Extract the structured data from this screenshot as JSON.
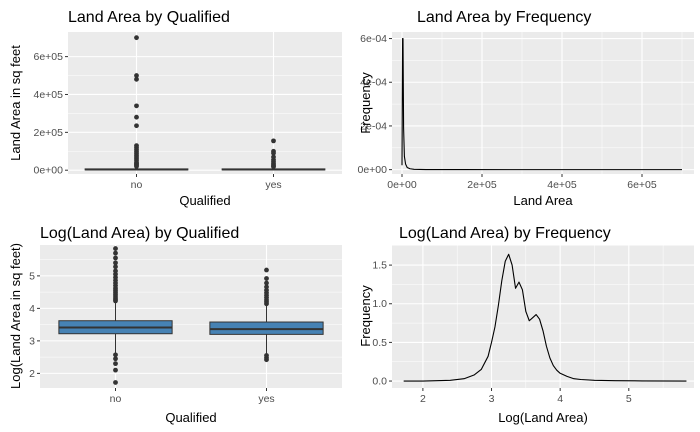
{
  "chart_data": [
    {
      "type": "boxplot",
      "title": "Land Area by Qualified",
      "xlabel": "Qualified",
      "ylabel": "Land Area in sq feet",
      "categories": [
        "no",
        "yes"
      ],
      "ylim": [
        -20000,
        730000
      ],
      "yticks": [
        0,
        200000,
        400000,
        600000
      ],
      "ytick_labels": [
        "0e+00",
        "2e+05",
        "4e+05",
        "6e+05"
      ],
      "box_fill": "#ffffff",
      "boxes": [
        {
          "category": "no",
          "q1": 2000,
          "median": 4000,
          "q3": 7000,
          "whisker_low": 0,
          "whisker_high": 15000,
          "outliers": [
            700000,
            500000,
            480000,
            340000,
            280000,
            235000,
            130000,
            120000,
            110000,
            100000,
            90000,
            80000,
            70000,
            60000,
            50000,
            40000,
            35000,
            30000,
            25000,
            20000
          ]
        },
        {
          "category": "yes",
          "q1": 2000,
          "median": 4000,
          "q3": 7000,
          "whisker_low": 0,
          "whisker_high": 15000,
          "outliers": [
            155000,
            100000,
            90000,
            70000,
            55000,
            45000,
            35000,
            28000,
            22000,
            18000
          ]
        }
      ]
    },
    {
      "type": "line",
      "title": "Land Area by Frequency",
      "xlabel": "Land Area",
      "ylabel": "Frequency",
      "xlim": [
        -25000,
        730000
      ],
      "ylim": [
        -2e-05,
        0.00063
      ],
      "xticks": [
        0,
        200000,
        400000,
        600000
      ],
      "xtick_labels": [
        "0e+00",
        "2e+05",
        "4e+05",
        "6e+05"
      ],
      "yticks": [
        0,
        0.0002,
        0.0004,
        0.0006
      ],
      "ytick_labels": [
        "0e+00",
        "2e-04",
        "4e-04",
        "6e-04"
      ],
      "x": [
        0,
        1500,
        2500,
        4000,
        6000,
        9000,
        13000,
        20000,
        30000,
        60000,
        150000,
        300000,
        500000,
        700000
      ],
      "y": [
        2e-05,
        0.0006,
        0.0006,
        0.00019,
        6e-05,
        2.5e-05,
        1e-05,
        4e-06,
        1.5e-06,
        5e-07,
        1e-07,
        5e-08,
        2e-08,
        1e-08
      ]
    },
    {
      "type": "boxplot",
      "title": "Log(Land Area) by Qualified",
      "xlabel": "Qualified",
      "ylabel": "Log(Land Area in sq feet)",
      "categories": [
        "no",
        "yes"
      ],
      "ylim": [
        1.55,
        5.95
      ],
      "yticks": [
        2,
        3,
        4,
        5,
        6
      ],
      "ytick_labels": [
        "2",
        "3",
        "4",
        "5",
        "6"
      ],
      "box_fill": "#4682b4",
      "boxes": [
        {
          "category": "no",
          "q1": 3.22,
          "median": 3.41,
          "q3": 3.62,
          "whisker_low": 2.62,
          "whisker_high": 4.2,
          "outliers": [
            4.23,
            4.27,
            4.32,
            4.38,
            4.44,
            4.5,
            4.56,
            4.62,
            4.7,
            4.78,
            4.86,
            4.95,
            5.05,
            5.15,
            5.28,
            5.4,
            5.55,
            5.7,
            5.84,
            2.57,
            2.45,
            2.3,
            2.1,
            1.72
          ]
        },
        {
          "category": "yes",
          "q1": 3.2,
          "median": 3.36,
          "q3": 3.58,
          "whisker_low": 2.6,
          "whisker_high": 4.1,
          "outliers": [
            4.14,
            4.2,
            4.26,
            4.33,
            4.4,
            4.48,
            4.56,
            4.66,
            4.78,
            4.92,
            5.18,
            2.55,
            2.48,
            2.42
          ]
        }
      ]
    },
    {
      "type": "line",
      "title": "Log(Land Area) by Frequency",
      "xlabel": "Log(Land Area)",
      "ylabel": "Frequency",
      "xlim": [
        1.55,
        5.95
      ],
      "ylim": [
        -0.09,
        1.76
      ],
      "xticks": [
        2,
        3,
        4,
        5,
        6
      ],
      "xtick_labels": [
        "2",
        "3",
        "4",
        "5",
        "6"
      ],
      "yticks": [
        0,
        0.5,
        1,
        1.5
      ],
      "ytick_labels": [
        "0.0",
        "0.5",
        "1.0",
        "1.5"
      ],
      "x": [
        1.72,
        2.0,
        2.4,
        2.6,
        2.75,
        2.85,
        2.95,
        3.0,
        3.05,
        3.1,
        3.15,
        3.2,
        3.25,
        3.3,
        3.35,
        3.4,
        3.45,
        3.5,
        3.55,
        3.6,
        3.65,
        3.7,
        3.75,
        3.8,
        3.85,
        3.9,
        3.95,
        4.0,
        4.1,
        4.2,
        4.3,
        4.5,
        4.8,
        5.2,
        5.84
      ],
      "y": [
        0.0,
        0.0,
        0.01,
        0.03,
        0.08,
        0.15,
        0.32,
        0.5,
        0.7,
        0.98,
        1.3,
        1.55,
        1.64,
        1.5,
        1.2,
        1.28,
        1.18,
        0.9,
        0.78,
        0.82,
        0.86,
        0.8,
        0.65,
        0.45,
        0.3,
        0.2,
        0.14,
        0.1,
        0.06,
        0.03,
        0.02,
        0.01,
        0.005,
        0.002,
        0.0
      ]
    }
  ]
}
